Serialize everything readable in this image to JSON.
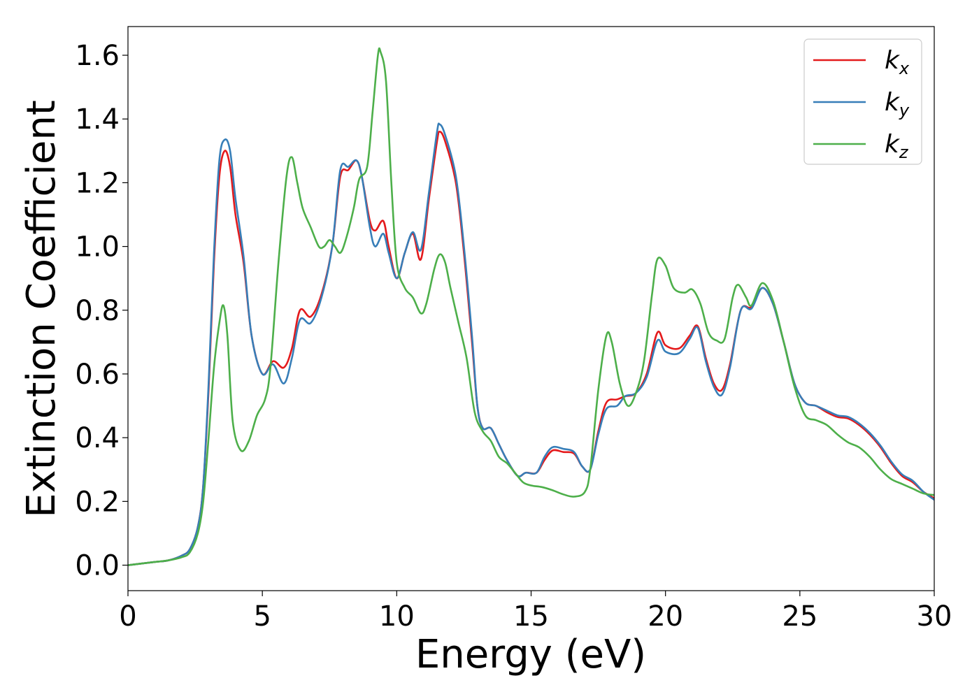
{
  "chart_data": {
    "type": "line",
    "xlabel": "Energy (eV)",
    "ylabel": "Extinction Coefficient",
    "xlim": [
      0,
      30
    ],
    "ylim": [
      -0.08,
      1.69
    ],
    "xticks": [
      0,
      5,
      10,
      15,
      20,
      25,
      30
    ],
    "yticks": [
      0.0,
      0.2,
      0.4,
      0.6,
      0.8,
      1.0,
      1.2,
      1.4,
      1.6
    ],
    "xtick_labels": [
      "0",
      "5",
      "10",
      "15",
      "20",
      "25",
      "30"
    ],
    "ytick_labels": [
      "0.0",
      "0.2",
      "0.4",
      "0.6",
      "0.8",
      "1.0",
      "1.2",
      "1.4",
      "1.6"
    ],
    "grid": false,
    "legend_position": "top-right",
    "series": [
      {
        "name": "k",
        "subscript": "x",
        "color": "#e41a1c",
        "points": [
          [
            0,
            0.0
          ],
          [
            1,
            0.01
          ],
          [
            1.5,
            0.015
          ],
          [
            2,
            0.03
          ],
          [
            2.3,
            0.05
          ],
          [
            2.6,
            0.12
          ],
          [
            2.8,
            0.25
          ],
          [
            3.0,
            0.55
          ],
          [
            3.2,
            0.95
          ],
          [
            3.4,
            1.22
          ],
          [
            3.6,
            1.3
          ],
          [
            3.8,
            1.25
          ],
          [
            4.0,
            1.1
          ],
          [
            4.3,
            0.95
          ],
          [
            4.6,
            0.72
          ],
          [
            5.0,
            0.6
          ],
          [
            5.4,
            0.64
          ],
          [
            5.8,
            0.62
          ],
          [
            6.1,
            0.68
          ],
          [
            6.4,
            0.8
          ],
          [
            6.8,
            0.78
          ],
          [
            7.2,
            0.85
          ],
          [
            7.6,
            1.0
          ],
          [
            7.9,
            1.22
          ],
          [
            8.2,
            1.24
          ],
          [
            8.5,
            1.27
          ],
          [
            8.7,
            1.22
          ],
          [
            9.0,
            1.08
          ],
          [
            9.2,
            1.05
          ],
          [
            9.5,
            1.08
          ],
          [
            9.7,
            1.0
          ],
          [
            10.0,
            0.9
          ],
          [
            10.3,
            0.98
          ],
          [
            10.6,
            1.04
          ],
          [
            10.9,
            0.96
          ],
          [
            11.2,
            1.15
          ],
          [
            11.5,
            1.33
          ],
          [
            11.6,
            1.36
          ],
          [
            11.8,
            1.33
          ],
          [
            12.2,
            1.2
          ],
          [
            12.5,
            0.98
          ],
          [
            12.8,
            0.7
          ],
          [
            13.0,
            0.5
          ],
          [
            13.2,
            0.43
          ],
          [
            13.5,
            0.43
          ],
          [
            13.8,
            0.38
          ],
          [
            14.1,
            0.33
          ],
          [
            14.5,
            0.28
          ],
          [
            14.8,
            0.29
          ],
          [
            15.2,
            0.29
          ],
          [
            15.5,
            0.33
          ],
          [
            15.8,
            0.36
          ],
          [
            16.2,
            0.355
          ],
          [
            16.6,
            0.35
          ],
          [
            16.9,
            0.31
          ],
          [
            17.2,
            0.3
          ],
          [
            17.5,
            0.42
          ],
          [
            17.8,
            0.51
          ],
          [
            18.2,
            0.52
          ],
          [
            18.5,
            0.53
          ],
          [
            18.9,
            0.54
          ],
          [
            19.3,
            0.6
          ],
          [
            19.7,
            0.73
          ],
          [
            20.0,
            0.69
          ],
          [
            20.5,
            0.68
          ],
          [
            20.9,
            0.72
          ],
          [
            21.2,
            0.75
          ],
          [
            21.5,
            0.65
          ],
          [
            21.8,
            0.57
          ],
          [
            22.1,
            0.55
          ],
          [
            22.4,
            0.63
          ],
          [
            22.8,
            0.8
          ],
          [
            23.2,
            0.81
          ],
          [
            23.6,
            0.87
          ],
          [
            24.0,
            0.82
          ],
          [
            24.4,
            0.7
          ],
          [
            24.8,
            0.57
          ],
          [
            25.2,
            0.51
          ],
          [
            25.6,
            0.5
          ],
          [
            26.0,
            0.48
          ],
          [
            26.4,
            0.465
          ],
          [
            26.8,
            0.46
          ],
          [
            27.2,
            0.44
          ],
          [
            27.6,
            0.41
          ],
          [
            28.0,
            0.37
          ],
          [
            28.4,
            0.32
          ],
          [
            28.8,
            0.28
          ],
          [
            29.2,
            0.26
          ],
          [
            29.6,
            0.23
          ],
          [
            30,
            0.21
          ]
        ]
      },
      {
        "name": "k",
        "subscript": "y",
        "color": "#377eb8",
        "points": [
          [
            0,
            0.0
          ],
          [
            1,
            0.01
          ],
          [
            1.5,
            0.015
          ],
          [
            2,
            0.03
          ],
          [
            2.3,
            0.05
          ],
          [
            2.6,
            0.12
          ],
          [
            2.8,
            0.25
          ],
          [
            3.0,
            0.57
          ],
          [
            3.2,
            0.98
          ],
          [
            3.4,
            1.27
          ],
          [
            3.6,
            1.335
          ],
          [
            3.8,
            1.3
          ],
          [
            4.0,
            1.15
          ],
          [
            4.3,
            0.97
          ],
          [
            4.6,
            0.72
          ],
          [
            5.0,
            0.6
          ],
          [
            5.4,
            0.63
          ],
          [
            5.8,
            0.57
          ],
          [
            6.1,
            0.65
          ],
          [
            6.4,
            0.77
          ],
          [
            6.8,
            0.76
          ],
          [
            7.2,
            0.84
          ],
          [
            7.6,
            1.0
          ],
          [
            7.9,
            1.24
          ],
          [
            8.2,
            1.25
          ],
          [
            8.5,
            1.27
          ],
          [
            8.7,
            1.22
          ],
          [
            9.0,
            1.06
          ],
          [
            9.2,
            1.0
          ],
          [
            9.5,
            1.04
          ],
          [
            9.7,
            0.98
          ],
          [
            10.0,
            0.9
          ],
          [
            10.3,
            0.98
          ],
          [
            10.6,
            1.045
          ],
          [
            10.9,
            0.99
          ],
          [
            11.2,
            1.17
          ],
          [
            11.5,
            1.36
          ],
          [
            11.6,
            1.383
          ],
          [
            11.8,
            1.35
          ],
          [
            12.2,
            1.22
          ],
          [
            12.5,
            1.0
          ],
          [
            12.8,
            0.72
          ],
          [
            13.0,
            0.5
          ],
          [
            13.2,
            0.43
          ],
          [
            13.5,
            0.43
          ],
          [
            13.8,
            0.38
          ],
          [
            14.1,
            0.33
          ],
          [
            14.5,
            0.28
          ],
          [
            14.8,
            0.29
          ],
          [
            15.2,
            0.29
          ],
          [
            15.5,
            0.34
          ],
          [
            15.8,
            0.37
          ],
          [
            16.2,
            0.365
          ],
          [
            16.6,
            0.355
          ],
          [
            16.9,
            0.31
          ],
          [
            17.2,
            0.3
          ],
          [
            17.5,
            0.41
          ],
          [
            17.8,
            0.49
          ],
          [
            18.2,
            0.5
          ],
          [
            18.5,
            0.53
          ],
          [
            18.9,
            0.54
          ],
          [
            19.3,
            0.59
          ],
          [
            19.7,
            0.705
          ],
          [
            20.0,
            0.67
          ],
          [
            20.5,
            0.665
          ],
          [
            20.9,
            0.71
          ],
          [
            21.2,
            0.745
          ],
          [
            21.5,
            0.64
          ],
          [
            21.8,
            0.56
          ],
          [
            22.1,
            0.535
          ],
          [
            22.4,
            0.62
          ],
          [
            22.8,
            0.8
          ],
          [
            23.2,
            0.805
          ],
          [
            23.6,
            0.87
          ],
          [
            24.0,
            0.82
          ],
          [
            24.4,
            0.7
          ],
          [
            24.8,
            0.57
          ],
          [
            25.2,
            0.51
          ],
          [
            25.6,
            0.5
          ],
          [
            26.0,
            0.485
          ],
          [
            26.4,
            0.47
          ],
          [
            26.8,
            0.465
          ],
          [
            27.2,
            0.445
          ],
          [
            27.6,
            0.415
          ],
          [
            28.0,
            0.375
          ],
          [
            28.4,
            0.325
          ],
          [
            28.8,
            0.285
          ],
          [
            29.2,
            0.265
          ],
          [
            29.6,
            0.23
          ],
          [
            30,
            0.205
          ]
        ]
      },
      {
        "name": "k",
        "subscript": "z",
        "color": "#4daf4a",
        "points": [
          [
            0,
            0.0
          ],
          [
            1,
            0.01
          ],
          [
            1.5,
            0.015
          ],
          [
            2,
            0.025
          ],
          [
            2.3,
            0.04
          ],
          [
            2.6,
            0.1
          ],
          [
            2.8,
            0.2
          ],
          [
            3.0,
            0.4
          ],
          [
            3.2,
            0.62
          ],
          [
            3.4,
            0.76
          ],
          [
            3.55,
            0.815
          ],
          [
            3.7,
            0.72
          ],
          [
            3.9,
            0.45
          ],
          [
            4.2,
            0.36
          ],
          [
            4.5,
            0.39
          ],
          [
            4.8,
            0.47
          ],
          [
            5.1,
            0.52
          ],
          [
            5.3,
            0.62
          ],
          [
            5.6,
            0.95
          ],
          [
            5.9,
            1.22
          ],
          [
            6.1,
            1.28
          ],
          [
            6.3,
            1.2
          ],
          [
            6.5,
            1.12
          ],
          [
            6.8,
            1.06
          ],
          [
            7.1,
            1.0
          ],
          [
            7.3,
            1.0
          ],
          [
            7.5,
            1.02
          ],
          [
            7.7,
            1.0
          ],
          [
            7.9,
            0.98
          ],
          [
            8.1,
            1.02
          ],
          [
            8.4,
            1.12
          ],
          [
            8.6,
            1.21
          ],
          [
            8.9,
            1.25
          ],
          [
            9.1,
            1.42
          ],
          [
            9.3,
            1.6
          ],
          [
            9.4,
            1.61
          ],
          [
            9.6,
            1.52
          ],
          [
            9.8,
            1.2
          ],
          [
            10.0,
            0.95
          ],
          [
            10.3,
            0.87
          ],
          [
            10.6,
            0.84
          ],
          [
            10.9,
            0.79
          ],
          [
            11.1,
            0.82
          ],
          [
            11.4,
            0.93
          ],
          [
            11.6,
            0.975
          ],
          [
            11.8,
            0.95
          ],
          [
            12.0,
            0.87
          ],
          [
            12.3,
            0.76
          ],
          [
            12.6,
            0.65
          ],
          [
            12.9,
            0.48
          ],
          [
            13.2,
            0.42
          ],
          [
            13.5,
            0.39
          ],
          [
            13.8,
            0.34
          ],
          [
            14.1,
            0.32
          ],
          [
            14.4,
            0.29
          ],
          [
            14.7,
            0.26
          ],
          [
            15.0,
            0.25
          ],
          [
            15.4,
            0.245
          ],
          [
            15.8,
            0.235
          ],
          [
            16.2,
            0.222
          ],
          [
            16.6,
            0.215
          ],
          [
            17.0,
            0.23
          ],
          [
            17.2,
            0.3
          ],
          [
            17.5,
            0.55
          ],
          [
            17.8,
            0.72
          ],
          [
            18.0,
            0.7
          ],
          [
            18.3,
            0.57
          ],
          [
            18.6,
            0.5
          ],
          [
            18.9,
            0.54
          ],
          [
            19.2,
            0.64
          ],
          [
            19.5,
            0.85
          ],
          [
            19.7,
            0.96
          ],
          [
            20.0,
            0.94
          ],
          [
            20.3,
            0.87
          ],
          [
            20.7,
            0.855
          ],
          [
            21.0,
            0.865
          ],
          [
            21.3,
            0.82
          ],
          [
            21.6,
            0.73
          ],
          [
            21.9,
            0.705
          ],
          [
            22.2,
            0.71
          ],
          [
            22.5,
            0.84
          ],
          [
            22.7,
            0.88
          ],
          [
            23.0,
            0.84
          ],
          [
            23.2,
            0.815
          ],
          [
            23.6,
            0.885
          ],
          [
            24.0,
            0.83
          ],
          [
            24.4,
            0.7
          ],
          [
            24.8,
            0.56
          ],
          [
            25.2,
            0.47
          ],
          [
            25.6,
            0.455
          ],
          [
            26.0,
            0.44
          ],
          [
            26.4,
            0.41
          ],
          [
            26.8,
            0.385
          ],
          [
            27.2,
            0.37
          ],
          [
            27.6,
            0.34
          ],
          [
            28.0,
            0.3
          ],
          [
            28.4,
            0.27
          ],
          [
            28.8,
            0.255
          ],
          [
            29.2,
            0.24
          ],
          [
            29.6,
            0.225
          ],
          [
            30,
            0.22
          ]
        ]
      }
    ]
  }
}
